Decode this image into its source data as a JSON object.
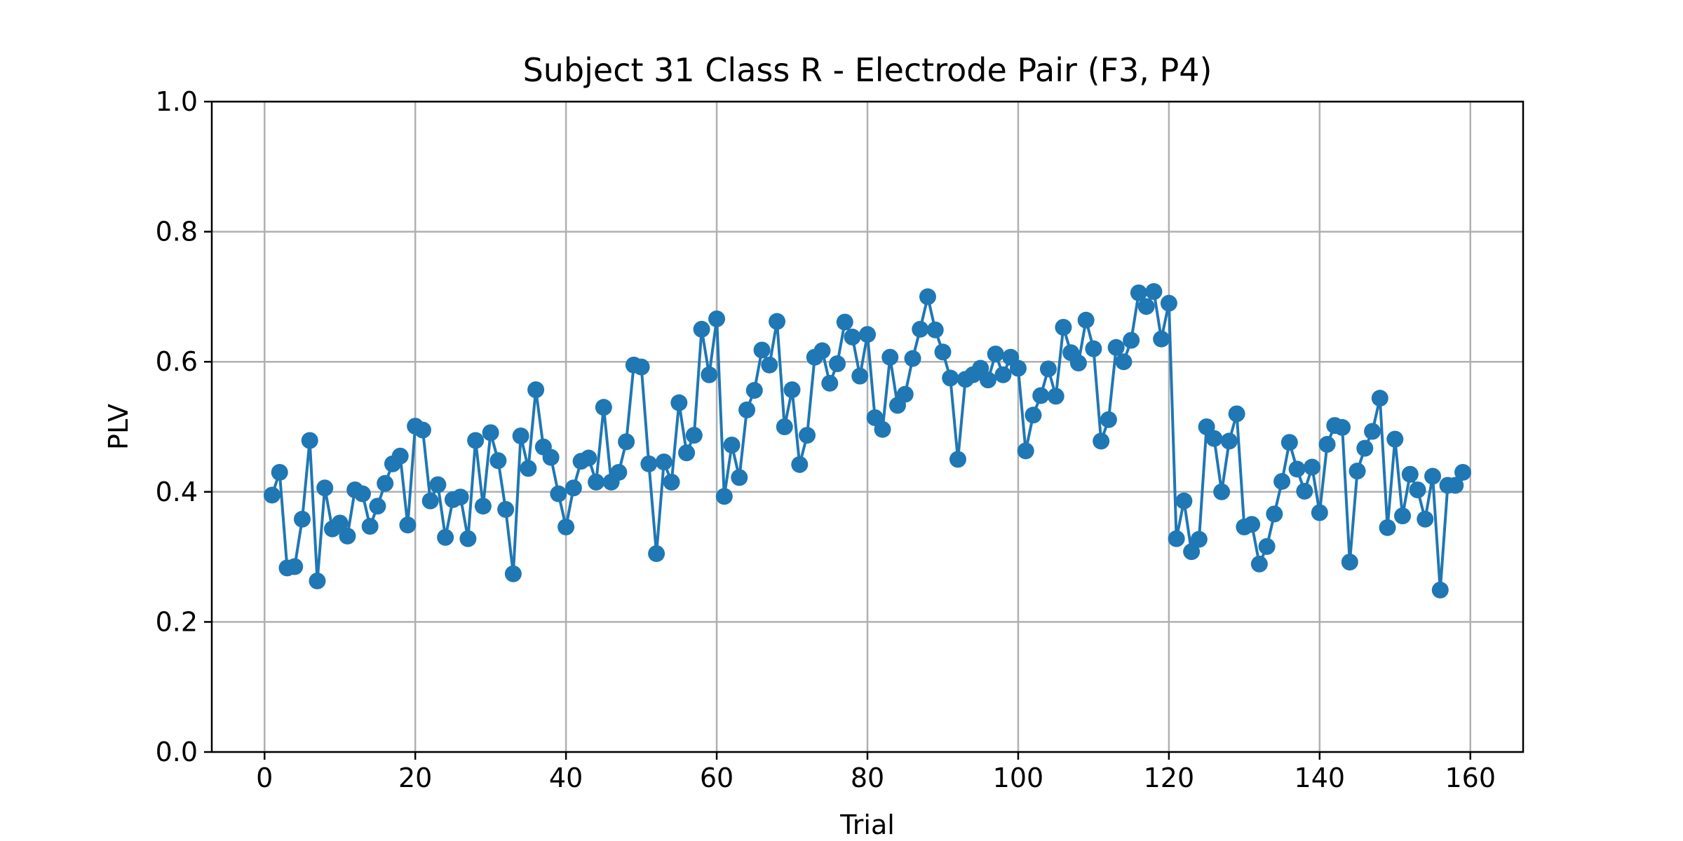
{
  "chart_data": {
    "type": "line",
    "title": "Subject 31 Class R - Electrode Pair (F3, P4)",
    "xlabel": "Trial",
    "ylabel": "PLV",
    "xlim": [
      -7,
      167
    ],
    "ylim": [
      0.0,
      1.0
    ],
    "xticks": [
      0,
      20,
      40,
      60,
      80,
      100,
      120,
      140,
      160
    ],
    "xtick_labels": [
      "0",
      "20",
      "40",
      "60",
      "80",
      "100",
      "120",
      "140",
      "160"
    ],
    "yticks": [
      0.0,
      0.2,
      0.4,
      0.6,
      0.8,
      1.0
    ],
    "ytick_labels": [
      "0.0",
      "0.2",
      "0.4",
      "0.6",
      "0.8",
      "1.0"
    ],
    "grid": true,
    "marker": "circle",
    "color": "#1f77b4",
    "series": [
      {
        "x": [
          1,
          2,
          3,
          4,
          5,
          6,
          7,
          8,
          9,
          10,
          11,
          12,
          13,
          14,
          15,
          16,
          17,
          18,
          19,
          20,
          21,
          22,
          23,
          24,
          25,
          26,
          27,
          28,
          29,
          30,
          31,
          32,
          33,
          34,
          35,
          36,
          37,
          38,
          39,
          40,
          41,
          42,
          43,
          44,
          45,
          46,
          47,
          48,
          49,
          50,
          51,
          52,
          53,
          54,
          55,
          56,
          57,
          58,
          59,
          60,
          61,
          62,
          63,
          64,
          65,
          66,
          67,
          68,
          69,
          70,
          71,
          72,
          73,
          74,
          75,
          76,
          77,
          78,
          79,
          80,
          81,
          82,
          83,
          84,
          85,
          86,
          87,
          88,
          89,
          90,
          91,
          92,
          93,
          94,
          95,
          96,
          97,
          98,
          99,
          100,
          101,
          102,
          103,
          104,
          105,
          106,
          107,
          108,
          109,
          110,
          111,
          112,
          113,
          114,
          115,
          116,
          117,
          118,
          119,
          120,
          121,
          122,
          123,
          124,
          125,
          126,
          127,
          128,
          129,
          130,
          131,
          132,
          133,
          134,
          135,
          136,
          137,
          138,
          139,
          140,
          141,
          142,
          143,
          144,
          145,
          146,
          147,
          148,
          149,
          150,
          151,
          152,
          153,
          154,
          155,
          156,
          157,
          158,
          159
        ],
        "y": [
          0.395,
          0.43,
          0.283,
          0.285,
          0.358,
          0.479,
          0.263,
          0.406,
          0.343,
          0.352,
          0.332,
          0.403,
          0.397,
          0.347,
          0.378,
          0.413,
          0.443,
          0.455,
          0.349,
          0.501,
          0.495,
          0.386,
          0.411,
          0.33,
          0.388,
          0.392,
          0.328,
          0.479,
          0.378,
          0.491,
          0.448,
          0.373,
          0.274,
          0.486,
          0.436,
          0.557,
          0.469,
          0.453,
          0.397,
          0.346,
          0.406,
          0.447,
          0.452,
          0.415,
          0.53,
          0.415,
          0.43,
          0.477,
          0.595,
          0.592,
          0.443,
          0.305,
          0.446,
          0.415,
          0.537,
          0.46,
          0.487,
          0.65,
          0.58,
          0.666,
          0.393,
          0.472,
          0.422,
          0.526,
          0.556,
          0.618,
          0.595,
          0.662,
          0.5,
          0.557,
          0.442,
          0.487,
          0.607,
          0.617,
          0.567,
          0.597,
          0.661,
          0.638,
          0.578,
          0.642,
          0.514,
          0.496,
          0.607,
          0.533,
          0.55,
          0.605,
          0.65,
          0.7,
          0.649,
          0.615,
          0.575,
          0.45,
          0.573,
          0.58,
          0.59,
          0.572,
          0.612,
          0.58,
          0.607,
          0.59,
          0.463,
          0.518,
          0.548,
          0.589,
          0.547,
          0.653,
          0.614,
          0.598,
          0.664,
          0.62,
          0.478,
          0.511,
          0.622,
          0.6,
          0.633,
          0.706,
          0.685,
          0.708,
          0.635,
          0.69,
          0.328,
          0.386,
          0.308,
          0.327,
          0.5,
          0.482,
          0.4,
          0.478,
          0.52,
          0.346,
          0.35,
          0.289,
          0.316,
          0.366,
          0.416,
          0.476,
          0.435,
          0.401,
          0.438,
          0.368,
          0.473,
          0.502,
          0.499,
          0.292,
          0.432,
          0.467,
          0.493,
          0.544,
          0.345,
          0.481,
          0.363,
          0.427,
          0.403,
          0.358,
          0.424,
          0.249,
          0.41,
          0.41,
          0.43
        ]
      }
    ]
  }
}
